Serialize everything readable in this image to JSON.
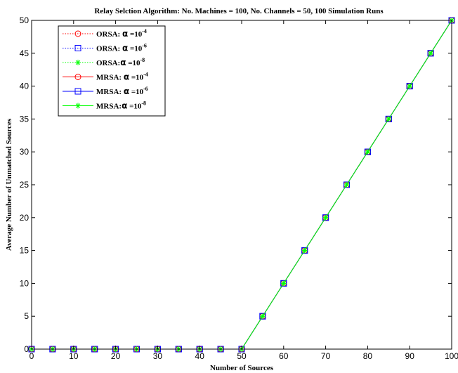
{
  "chart_data": {
    "type": "line",
    "title": "Relay Selction Algorithm: No. Machines = 100, No. Channels = 50, 100 Simulation Runs",
    "xlabel": "Number of Sources",
    "ylabel": "Average Number of Unmatched Sources",
    "xlim": [
      0,
      100
    ],
    "ylim": [
      0,
      50
    ],
    "xticks": [
      0,
      10,
      20,
      30,
      40,
      50,
      60,
      70,
      80,
      90,
      100
    ],
    "yticks": [
      0,
      5,
      10,
      15,
      20,
      25,
      30,
      35,
      40,
      45,
      50
    ],
    "grid": false,
    "legend_position": "top-left",
    "x": [
      0,
      5,
      10,
      15,
      20,
      25,
      30,
      35,
      40,
      45,
      50,
      55,
      60,
      65,
      70,
      75,
      80,
      85,
      90,
      95,
      100
    ],
    "series": [
      {
        "name": "ORSA: α =10-4",
        "legend_prefix": "ORSA: ",
        "legend_symbol": "α",
        "legend_base": " =10",
        "legend_exp": "-4",
        "color": "#ff0000",
        "dash": "dotted",
        "marker": "circle",
        "values": [
          0,
          0,
          0,
          0,
          0,
          0,
          0,
          0,
          0,
          0,
          0,
          5,
          10,
          15,
          20,
          25,
          30,
          35,
          40,
          45,
          50
        ]
      },
      {
        "name": "ORSA: α =10-6",
        "legend_prefix": "ORSA: ",
        "legend_symbol": "α",
        "legend_base": " =10",
        "legend_exp": "-6",
        "color": "#0000ff",
        "dash": "dotted",
        "marker": "square",
        "values": [
          0,
          0,
          0,
          0,
          0,
          0,
          0,
          0,
          0,
          0,
          0,
          5,
          10,
          15,
          20,
          25,
          30,
          35,
          40,
          45,
          50
        ]
      },
      {
        "name": "ORSA:α =10-8",
        "legend_prefix": "ORSA:",
        "legend_symbol": "α",
        "legend_base": " =10",
        "legend_exp": "-8",
        "color": "#00ff00",
        "dash": "dotted",
        "marker": "star",
        "values": [
          0,
          0,
          0,
          0,
          0,
          0,
          0,
          0,
          0,
          0,
          0,
          5,
          10,
          15,
          20,
          25,
          30,
          35,
          40,
          45,
          50
        ]
      },
      {
        "name": "MRSA: α =10-4",
        "legend_prefix": "MRSA: ",
        "legend_symbol": "α",
        "legend_base": " =10",
        "legend_exp": "-4",
        "color": "#ff0000",
        "dash": "solid",
        "marker": "circle",
        "values": [
          0,
          0,
          0,
          0,
          0,
          0,
          0,
          0,
          0,
          0,
          0,
          5,
          10,
          15,
          20,
          25,
          30,
          35,
          40,
          45,
          50
        ]
      },
      {
        "name": "MRSA: α =10-6",
        "legend_prefix": "MRSA: ",
        "legend_symbol": "α",
        "legend_base": " =10",
        "legend_exp": "-6",
        "color": "#0000ff",
        "dash": "solid",
        "marker": "square",
        "values": [
          0,
          0,
          0,
          0,
          0,
          0,
          0,
          0,
          0,
          0,
          0,
          5,
          10,
          15,
          20,
          25,
          30,
          35,
          40,
          45,
          50
        ]
      },
      {
        "name": "MRSA:α =10-8",
        "legend_prefix": "MRSA:",
        "legend_symbol": "α",
        "legend_base": " =10",
        "legend_exp": "-8",
        "color": "#00ff00",
        "dash": "solid",
        "marker": "star",
        "values": [
          0,
          0,
          0,
          0,
          0,
          0,
          0,
          0,
          0,
          0,
          0,
          5,
          10,
          15,
          20,
          25,
          30,
          35,
          40,
          45,
          50
        ]
      }
    ]
  }
}
